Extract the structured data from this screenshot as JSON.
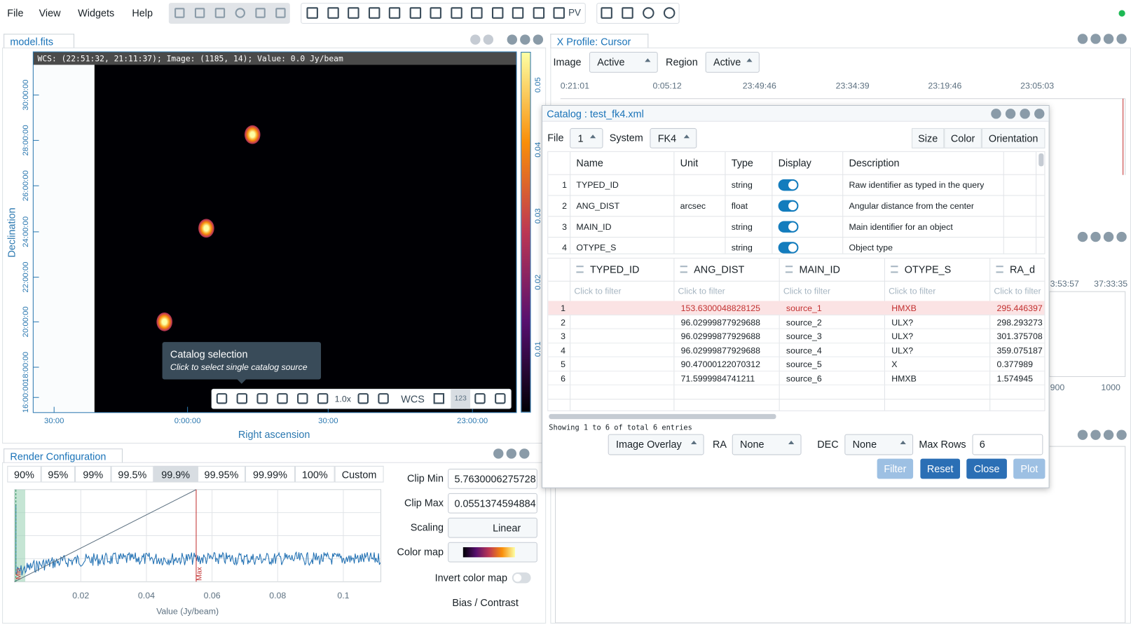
{
  "menu": [
    "File",
    "View",
    "Widgets",
    "Help"
  ],
  "toolbar": {
    "pv": "PV"
  },
  "image_view": {
    "tab": "model.fits",
    "cursor_info": "WCS: (22:51:32, 21:11:37); Image: (1185, 14); Value:  0.0 Jy/beam",
    "y_label": "Declination",
    "x_label": "Right ascension",
    "y_ticks": [
      "30:00:00",
      "28:00:00",
      "26:00:00",
      "24:00:00",
      "22:00:00",
      "20:00:00",
      "18:00:00",
      "16:00:00"
    ],
    "x_ticks": [
      "30:00",
      "0:00:00",
      "30:00",
      "23:00:00"
    ],
    "colorbar_ticks": [
      "0.05",
      "0.04",
      "0.03",
      "0.02",
      "0.01"
    ],
    "tooltip": {
      "title": "Catalog selection",
      "hint": "Click to select single catalog source"
    },
    "view_tools": {
      "zoom": "1.0x",
      "coordinate": "WCS",
      "values": "123"
    }
  },
  "render_config": {
    "title": "Render Configuration",
    "clip_presets": [
      "90%",
      "95%",
      "99%",
      "99.5%",
      "99.9%",
      "99.95%",
      "99.99%",
      "100%",
      "Custom"
    ],
    "fields": [
      {
        "label": "Clip Min",
        "value": "5.7630006275728"
      },
      {
        "label": "Clip Max",
        "value": "0.0551374594884"
      },
      {
        "label": "Scaling",
        "value": "Linear"
      },
      {
        "label": "Color map"
      }
    ],
    "invert_label": "Invert color map",
    "histogram_ticks": [
      "0.02",
      "0.04",
      "0.06",
      "0.08",
      "0.1"
    ],
    "histogram_x_label": "Value (Jy/beam)",
    "min_marker": "Min",
    "max_marker": "Max",
    "bias_contrast": "Bias / Contrast"
  },
  "profile": {
    "title": "X Profile: Cursor",
    "image_label": "Image",
    "image_value": "Active",
    "region_label": "Region",
    "region_value": "Active",
    "x_ticks": [
      "0:21:01",
      "0:05:12",
      "23:49:46",
      "23:34:39",
      "23:19:46",
      "23:05:03"
    ]
  },
  "side_plots": {
    "upper_ticks": [
      "3:53:57",
      "37:33:35"
    ],
    "lower_ticks": [
      "900",
      "1000"
    ]
  },
  "catalog": {
    "title": "Catalog : test_fk4.xml",
    "file_label": "File",
    "file_value": "1",
    "system_label": "System",
    "system_value": "FK4",
    "style_buttons": [
      "Size",
      "Color",
      "Orientation"
    ],
    "columns_header": [
      "Name",
      "Unit",
      "Type",
      "Display",
      "Description"
    ],
    "columns": [
      {
        "index": "1",
        "name": "TYPED_ID",
        "type": "string",
        "display": true,
        "description": "Raw identifier as typed in the query"
      },
      {
        "index": "2",
        "name": "ANG_DIST",
        "unit": "arcsec",
        "type": "float",
        "display": true,
        "description": "Angular distance from the center"
      },
      {
        "index": "3",
        "name": "MAIN_ID",
        "type": "string",
        "display": true,
        "description": "Main identifier for an object"
      },
      {
        "index": "4",
        "name": "OTYPE_S",
        "type": "string",
        "display": true,
        "description": "Object type"
      }
    ],
    "data_header": [
      "TYPED_ID",
      "ANG_DIST",
      "MAIN_ID",
      "OTYPE_S",
      "RA_d"
    ],
    "filter_placeholder": "Click to filter",
    "rows": [
      {
        "index": "1",
        "ang_dist": "153.6300048828125",
        "main_id": "source_1",
        "otype": "HMXB",
        "ra": "295.446397",
        "selected": true
      },
      {
        "index": "2",
        "ang_dist": "96.02999877929688",
        "main_id": "source_2",
        "otype": "ULX?",
        "ra": "298.293273"
      },
      {
        "index": "3",
        "ang_dist": "96.02999877929688",
        "main_id": "source_3",
        "otype": "ULX?",
        "ra": "301.375708"
      },
      {
        "index": "4",
        "ang_dist": "96.02999877929688",
        "main_id": "source_4",
        "otype": "ULX?",
        "ra": "359.075187"
      },
      {
        "index": "5",
        "ang_dist": "90.47000122070312",
        "main_id": "source_5",
        "otype": "X",
        "ra": "0.377989"
      },
      {
        "index": "6",
        "ang_dist": "71.5999984741211",
        "main_id": "source_6",
        "otype": "HMXB",
        "ra": "1.574945"
      }
    ],
    "footer": "Showing 1 to 6 of total 6 entries",
    "overlay": "Image Overlay",
    "ra_label": "RA",
    "ra_value": "None",
    "dec_label": "DEC",
    "dec_value": "None",
    "max_rows_label": "Max Rows",
    "max_rows": "6",
    "actions": [
      "Filter",
      "Reset",
      "Close",
      "Plot"
    ]
  }
}
